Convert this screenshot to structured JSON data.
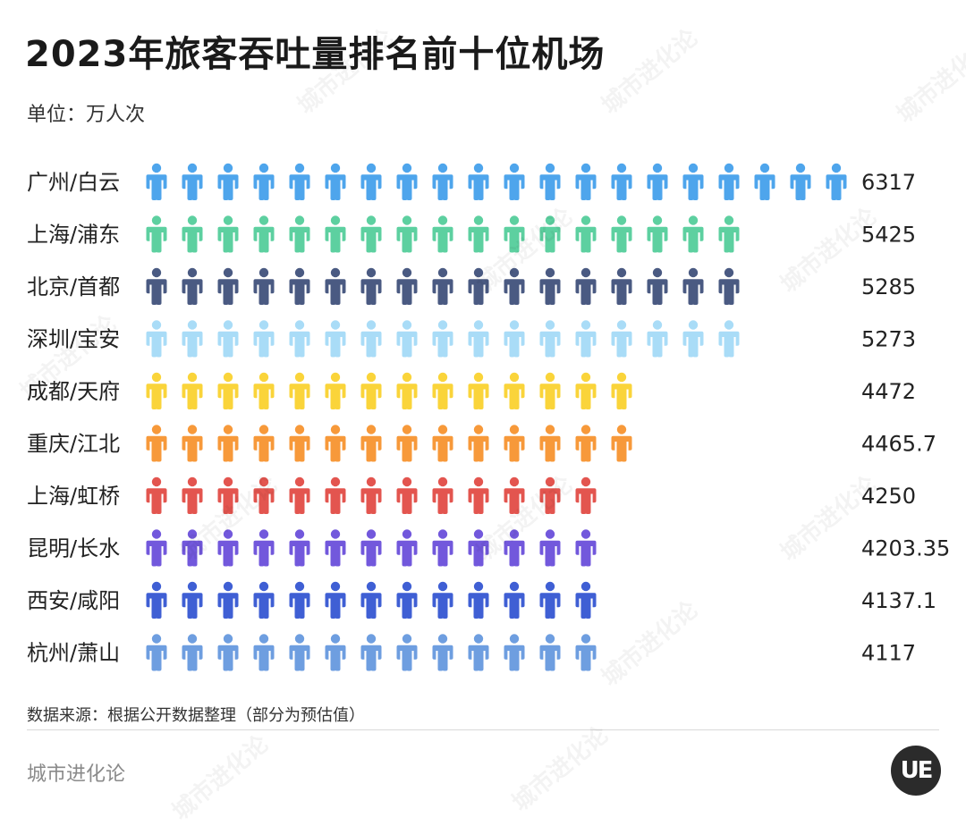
{
  "header": {
    "title": "2023年旅客吞吐量排名前十位机场",
    "unit": "单位：万人次"
  },
  "footer": {
    "source": "数据来源：根据公开数据整理（部分为预估值）",
    "brand": "城市进化论",
    "logo_text": "UE",
    "watermark": "城市进化论"
  },
  "chart_data": {
    "type": "bar",
    "categories": [
      "广州/白云",
      "上海/浦东",
      "北京/首都",
      "深圳/宝安",
      "成都/天府",
      "重庆/江北",
      "上海/虹桥",
      "昆明/长水",
      "西安/咸阳",
      "杭州/萧山"
    ],
    "values": [
      6317,
      5425,
      5285,
      5273,
      4472,
      4465.7,
      4250,
      4203.35,
      4137.1,
      4117
    ],
    "value_labels": [
      "6317",
      "5425",
      "5285",
      "5273",
      "4472",
      "4465.7",
      "4250",
      "4203.35",
      "4137.1",
      "4117"
    ],
    "icon_counts": [
      20,
      17,
      17,
      17,
      14,
      14,
      13,
      13,
      13,
      13
    ],
    "icon_unit": "person-icon",
    "colors": [
      "#4ea5ec",
      "#5dd0a0",
      "#4a5a82",
      "#a9dcf7",
      "#fad43a",
      "#f7993a",
      "#e3554f",
      "#7258dc",
      "#3f5fd4",
      "#6e9ee0"
    ],
    "ylabel": "万人次",
    "grid": false,
    "legend": "none"
  }
}
